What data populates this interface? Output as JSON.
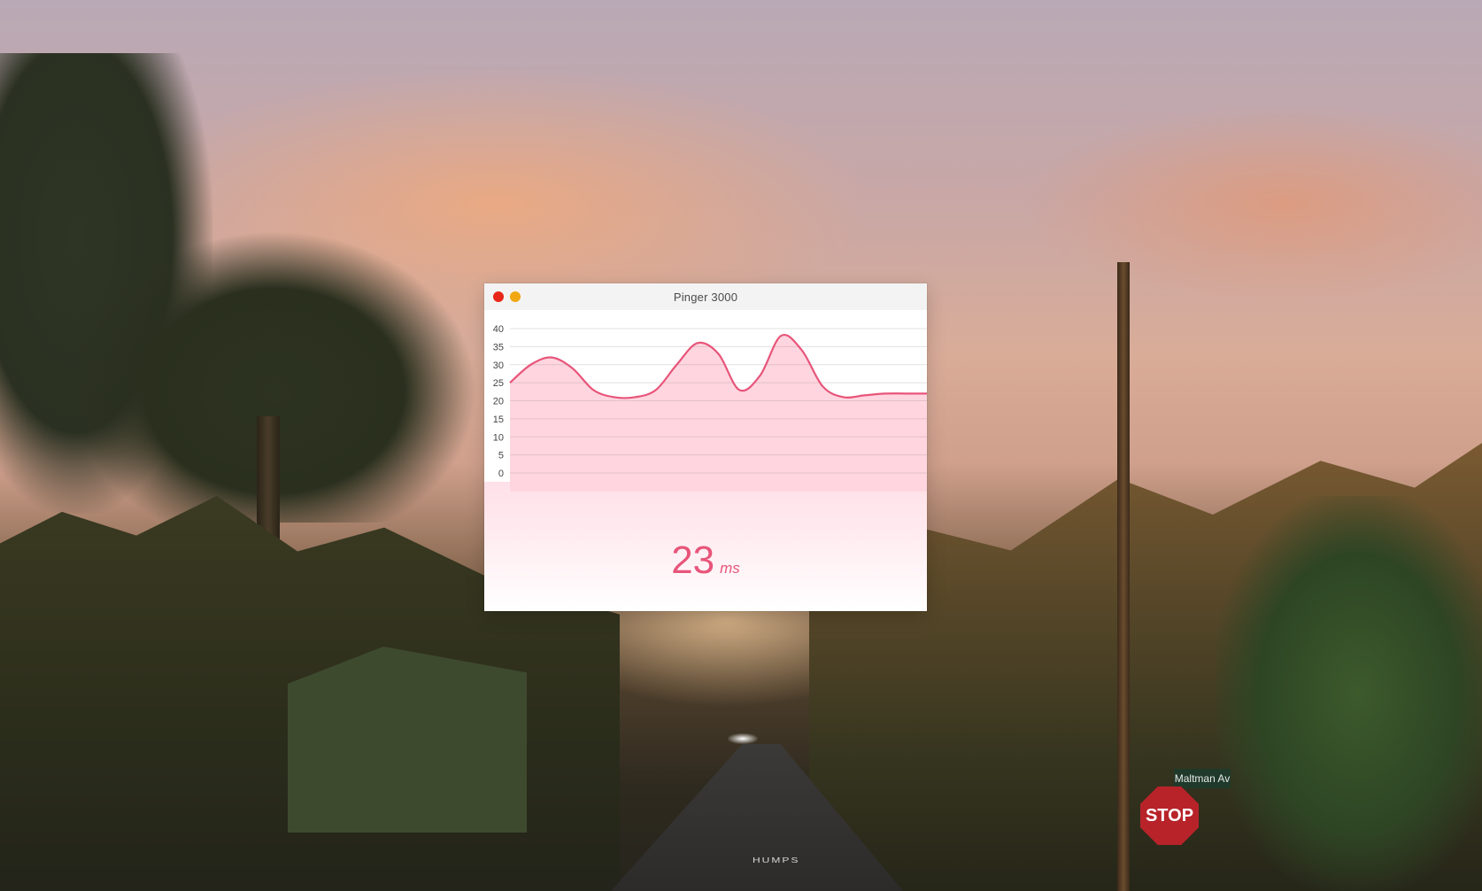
{
  "window": {
    "title": "Pinger 3000",
    "controls": {
      "close_color": "#e8271a",
      "minimize_color": "#f1a711"
    }
  },
  "latency": {
    "value": "23",
    "unit": "ms"
  },
  "background_signs": {
    "stop": "STOP",
    "street": "Maltman Av",
    "road_marking": "HUMPS"
  },
  "chart_data": {
    "type": "area",
    "ylim": [
      0,
      40
    ],
    "y_ticks": [
      "40",
      "35",
      "30",
      "25",
      "20",
      "15",
      "10",
      "5",
      "0"
    ],
    "x": [
      0,
      1,
      2,
      3,
      4,
      5,
      6,
      7,
      8,
      9,
      10,
      11,
      12,
      13,
      14,
      15,
      16,
      17,
      18,
      19,
      20
    ],
    "values": [
      25,
      30,
      32,
      29,
      23,
      21,
      21,
      23,
      30,
      36,
      33,
      23,
      27,
      38,
      34,
      24,
      21,
      21.5,
      22,
      22,
      22
    ],
    "line_color": "#e8557a",
    "fill_color": "#ffd6e0",
    "grid": true
  }
}
